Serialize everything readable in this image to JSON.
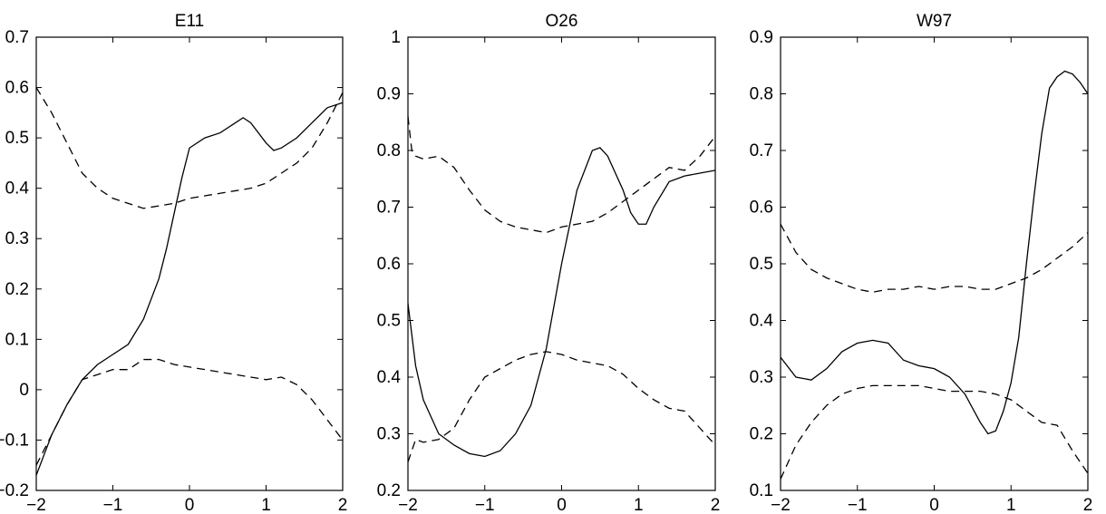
{
  "chart_data": [
    {
      "type": "line",
      "title": "E11",
      "xlim": [
        -2,
        2
      ],
      "ylim": [
        -0.2,
        0.7
      ],
      "xticks": [
        "−2",
        "−1",
        "0",
        "1",
        "2"
      ],
      "yticks": [
        "−0.2",
        "−0.1",
        "0",
        "0.1",
        "0.2",
        "0.3",
        "0.4",
        "0.5",
        "0.6",
        "0.7"
      ],
      "grid": false,
      "series": [
        {
          "style": "solid",
          "x": [
            -2,
            -1.8,
            -1.6,
            -1.4,
            -1.2,
            -1,
            -0.8,
            -0.6,
            -0.4,
            -0.3,
            -0.2,
            -0.1,
            0,
            0.2,
            0.4,
            0.6,
            0.7,
            0.8,
            1,
            1.1,
            1.2,
            1.4,
            1.6,
            1.8,
            2
          ],
          "y": [
            -0.17,
            -0.09,
            -0.03,
            0.02,
            0.05,
            0.07,
            0.09,
            0.14,
            0.22,
            0.28,
            0.35,
            0.42,
            0.48,
            0.5,
            0.51,
            0.53,
            0.54,
            0.53,
            0.49,
            0.475,
            0.48,
            0.5,
            0.53,
            0.56,
            0.57
          ]
        },
        {
          "style": "dashed",
          "x": [
            -2,
            -1.8,
            -1.6,
            -1.4,
            -1.2,
            -1,
            -0.8,
            -0.6,
            -0.4,
            -0.2,
            0,
            0.2,
            0.4,
            0.6,
            0.8,
            1,
            1.2,
            1.4,
            1.6,
            1.8,
            2
          ],
          "y": [
            0.6,
            0.55,
            0.49,
            0.43,
            0.4,
            0.38,
            0.37,
            0.36,
            0.365,
            0.37,
            0.38,
            0.385,
            0.39,
            0.395,
            0.4,
            0.41,
            0.43,
            0.45,
            0.48,
            0.53,
            0.59
          ]
        },
        {
          "style": "dashed",
          "x": [
            -2,
            -1.8,
            -1.6,
            -1.4,
            -1.2,
            -1,
            -0.8,
            -0.6,
            -0.4,
            -0.2,
            0,
            0.2,
            0.4,
            0.6,
            0.8,
            1,
            1.2,
            1.4,
            1.6,
            1.8,
            2
          ],
          "y": [
            -0.15,
            -0.09,
            -0.03,
            0.02,
            0.03,
            0.04,
            0.04,
            0.06,
            0.06,
            0.05,
            0.045,
            0.04,
            0.035,
            0.03,
            0.025,
            0.02,
            0.025,
            0.01,
            -0.02,
            -0.06,
            -0.1
          ]
        }
      ]
    },
    {
      "type": "line",
      "title": "O26",
      "xlim": [
        -2,
        2
      ],
      "ylim": [
        0.2,
        1
      ],
      "xticks": [
        "−2",
        "−1",
        "0",
        "1",
        "2"
      ],
      "yticks": [
        "0.2",
        "0.3",
        "0.4",
        "0.5",
        "0.6",
        "0.7",
        "0.8",
        "0.9",
        "1"
      ],
      "grid": false,
      "series": [
        {
          "style": "solid",
          "x": [
            -2,
            -1.9,
            -1.8,
            -1.6,
            -1.4,
            -1.2,
            -1,
            -0.8,
            -0.6,
            -0.4,
            -0.2,
            0,
            0.2,
            0.4,
            0.5,
            0.6,
            0.8,
            0.9,
            1,
            1.1,
            1.2,
            1.4,
            1.6,
            1.8,
            2
          ],
          "y": [
            0.53,
            0.42,
            0.36,
            0.3,
            0.28,
            0.265,
            0.26,
            0.27,
            0.3,
            0.35,
            0.45,
            0.6,
            0.73,
            0.8,
            0.805,
            0.79,
            0.73,
            0.69,
            0.67,
            0.67,
            0.7,
            0.745,
            0.755,
            0.76,
            0.765
          ]
        },
        {
          "style": "dashed",
          "x": [
            -2,
            -1.95,
            -1.9,
            -1.8,
            -1.6,
            -1.4,
            -1.2,
            -1,
            -0.8,
            -0.6,
            -0.4,
            -0.2,
            0,
            0.2,
            0.4,
            0.6,
            0.8,
            1,
            1.2,
            1.4,
            1.6,
            1.8,
            2
          ],
          "y": [
            0.86,
            0.8,
            0.79,
            0.785,
            0.79,
            0.77,
            0.73,
            0.695,
            0.675,
            0.665,
            0.66,
            0.655,
            0.665,
            0.67,
            0.675,
            0.69,
            0.71,
            0.73,
            0.75,
            0.77,
            0.765,
            0.79,
            0.825
          ]
        },
        {
          "style": "dashed",
          "x": [
            -2,
            -1.9,
            -1.8,
            -1.6,
            -1.4,
            -1.2,
            -1,
            -0.8,
            -0.6,
            -0.4,
            -0.2,
            0,
            0.2,
            0.4,
            0.6,
            0.8,
            1,
            1.2,
            1.4,
            1.6,
            1.8,
            2
          ],
          "y": [
            0.25,
            0.29,
            0.285,
            0.29,
            0.31,
            0.36,
            0.4,
            0.415,
            0.43,
            0.44,
            0.445,
            0.44,
            0.43,
            0.425,
            0.42,
            0.405,
            0.38,
            0.36,
            0.345,
            0.34,
            0.31,
            0.28
          ]
        }
      ]
    },
    {
      "type": "line",
      "title": "W97",
      "xlim": [
        -2,
        2
      ],
      "ylim": [
        0.1,
        0.9
      ],
      "xticks": [
        "−2",
        "−1",
        "0",
        "1",
        "2"
      ],
      "yticks": [
        "0.1",
        "0.2",
        "0.3",
        "0.4",
        "0.5",
        "0.6",
        "0.7",
        "0.8",
        "0.9"
      ],
      "grid": false,
      "series": [
        {
          "style": "solid",
          "x": [
            -2,
            -1.8,
            -1.6,
            -1.4,
            -1.2,
            -1,
            -0.8,
            -0.6,
            -0.4,
            -0.2,
            0,
            0.2,
            0.4,
            0.6,
            0.7,
            0.8,
            0.9,
            1,
            1.1,
            1.2,
            1.3,
            1.4,
            1.5,
            1.6,
            1.7,
            1.8,
            1.9,
            2
          ],
          "y": [
            0.335,
            0.3,
            0.295,
            0.315,
            0.345,
            0.36,
            0.365,
            0.36,
            0.33,
            0.32,
            0.315,
            0.3,
            0.27,
            0.22,
            0.2,
            0.205,
            0.24,
            0.29,
            0.37,
            0.5,
            0.62,
            0.73,
            0.81,
            0.83,
            0.84,
            0.835,
            0.82,
            0.8
          ]
        },
        {
          "style": "dashed",
          "x": [
            -2,
            -1.8,
            -1.6,
            -1.4,
            -1.2,
            -1,
            -0.8,
            -0.6,
            -0.4,
            -0.2,
            0,
            0.2,
            0.4,
            0.6,
            0.8,
            1,
            1.2,
            1.4,
            1.6,
            1.8,
            2
          ],
          "y": [
            0.57,
            0.52,
            0.49,
            0.475,
            0.465,
            0.455,
            0.45,
            0.455,
            0.455,
            0.46,
            0.455,
            0.46,
            0.46,
            0.455,
            0.455,
            0.465,
            0.475,
            0.49,
            0.51,
            0.53,
            0.555
          ]
        },
        {
          "style": "dashed",
          "x": [
            -2,
            -1.8,
            -1.6,
            -1.4,
            -1.2,
            -1,
            -0.8,
            -0.6,
            -0.4,
            -0.2,
            0,
            0.2,
            0.4,
            0.6,
            0.8,
            1,
            1.2,
            1.4,
            1.6,
            1.8,
            2
          ],
          "y": [
            0.12,
            0.18,
            0.22,
            0.25,
            0.27,
            0.28,
            0.285,
            0.285,
            0.285,
            0.285,
            0.28,
            0.275,
            0.275,
            0.275,
            0.27,
            0.26,
            0.24,
            0.22,
            0.215,
            0.17,
            0.13
          ]
        }
      ]
    }
  ]
}
